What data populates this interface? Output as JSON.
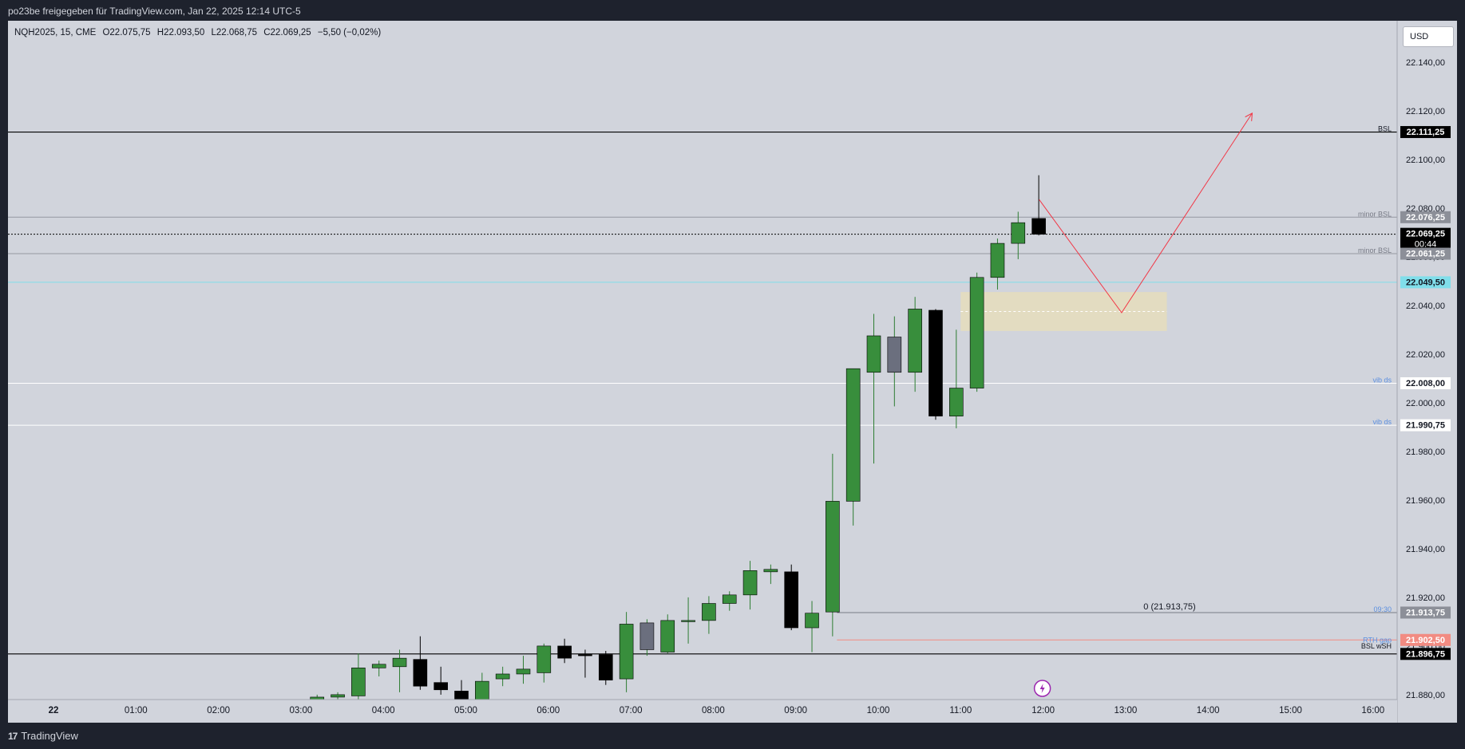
{
  "window": {
    "title": "po23be freigegeben für TradingView.com, Jan 22, 2025 12:14 UTC-5"
  },
  "legend": {
    "symbol": "NQH2025, 15, CME",
    "open": "O22.075,75",
    "high": "H22.093,50",
    "low": "L22.068,75",
    "close": "C22.069,25",
    "change": "−5,50 (−0,02%)"
  },
  "currency_button": "USD",
  "footer": {
    "brand": "TradingView",
    "logo_glyph": "17"
  },
  "colors": {
    "background": "#d1d4dc",
    "bull": "#388e3c",
    "bear": "#000000",
    "neutral": "#6b6f7e",
    "projection": "#f23645",
    "ob_zone": "#e8dfb8",
    "cyan_line": "#80deea",
    "rth_gap": "#f28b82"
  },
  "chart_data": {
    "type": "candlestick",
    "instrument": "NQH2025",
    "interval": "15",
    "currency": "USD",
    "y_range": [
      21878,
      22157
    ],
    "y_ticks": [
      21880,
      21900,
      21920,
      21940,
      21960,
      21980,
      22000,
      22020,
      22040,
      22060,
      22080,
      22100,
      22120,
      22140
    ],
    "y_tick_labels": [
      "21.880,00",
      "21.900,00",
      "21.920,00",
      "21.940,00",
      "21.960,00",
      "21.980,00",
      "22.000,00",
      "22.020,00",
      "22.040,00",
      "22.060,00",
      "22.080,00",
      "22.100,00",
      "22.120,00",
      "22.140,00"
    ],
    "x_tick_labels": [
      "22",
      "01:00",
      "02:00",
      "03:00",
      "04:00",
      "05:00",
      "06:00",
      "07:00",
      "08:00",
      "09:00",
      "10:00",
      "11:00",
      "12:00",
      "13:00",
      "14:00",
      "15:00",
      "16:00"
    ],
    "x_range_hours": [
      0,
      16.4
    ],
    "candles": [
      {
        "t": "03:15",
        "o": 21878.0,
        "h": 21880.0,
        "l": 21877.0,
        "c": 21879.0
      },
      {
        "t": "03:30",
        "o": 21879.0,
        "h": 21881.0,
        "l": 21877.0,
        "c": 21880.0
      },
      {
        "t": "03:45",
        "o": 21879.5,
        "h": 21897.0,
        "l": 21877.0,
        "c": 21891.0
      },
      {
        "t": "04:00",
        "o": 21891.0,
        "h": 21894.0,
        "l": 21887.5,
        "c": 21892.5
      },
      {
        "t": "04:15",
        "o": 21891.5,
        "h": 21898.5,
        "l": 21881.0,
        "c": 21895.0
      },
      {
        "t": "04:30",
        "o": 21894.5,
        "h": 21904.0,
        "l": 21882.0,
        "c": 21883.5
      },
      {
        "t": "04:45",
        "o": 21885.0,
        "h": 21891.5,
        "l": 21880.0,
        "c": 21882.0
      },
      {
        "t": "05:00",
        "o": 21881.5,
        "h": 21886.0,
        "l": 21876.0,
        "c": 21878.0
      },
      {
        "t": "05:15",
        "o": 21878.0,
        "h": 21889.0,
        "l": 21877.5,
        "c": 21885.5
      },
      {
        "t": "05:30",
        "o": 21886.5,
        "h": 21891.5,
        "l": 21883.5,
        "c": 21888.5
      },
      {
        "t": "05:45",
        "o": 21888.5,
        "h": 21896.0,
        "l": 21884.5,
        "c": 21890.5
      },
      {
        "t": "06:00",
        "o": 21889.0,
        "h": 21901.0,
        "l": 21885.0,
        "c": 21900.0
      },
      {
        "t": "06:15",
        "o": 21900.0,
        "h": 21903.0,
        "l": 21893.0,
        "c": 21895.0
      },
      {
        "t": "06:30",
        "o": 21896.5,
        "h": 21898.5,
        "l": 21887.0,
        "c": 21896.0
      },
      {
        "t": "06:45",
        "o": 21896.5,
        "h": 21898.0,
        "l": 21884.0,
        "c": 21886.0
      },
      {
        "t": "07:00",
        "o": 21886.5,
        "h": 21914.0,
        "l": 21881.0,
        "c": 21909.0
      },
      {
        "t": "07:15",
        "o": 21898.5,
        "h": 21911.0,
        "l": 21896.0,
        "c": 21909.5
      },
      {
        "t": "07:30",
        "o": 21897.5,
        "h": 21913.0,
        "l": 21897.0,
        "c": 21910.5
      },
      {
        "t": "07:45",
        "o": 21910.0,
        "h": 21920.0,
        "l": 21901.0,
        "c": 21910.5
      },
      {
        "t": "08:00",
        "o": 21910.5,
        "h": 21920.5,
        "l": 21905.0,
        "c": 21917.5
      },
      {
        "t": "08:15",
        "o": 21917.5,
        "h": 21922.5,
        "l": 21914.5,
        "c": 21921.0
      },
      {
        "t": "08:30",
        "o": 21921.0,
        "h": 21935.0,
        "l": 21915.0,
        "c": 21931.0
      },
      {
        "t": "08:45",
        "o": 21930.5,
        "h": 21933.5,
        "l": 21925.5,
        "c": 21931.5
      },
      {
        "t": "09:00",
        "o": 21930.5,
        "h": 21933.5,
        "l": 21906.5,
        "c": 21907.5
      },
      {
        "t": "09:15",
        "o": 21907.5,
        "h": 21918.5,
        "l": 21897.5,
        "c": 21913.5
      },
      {
        "t": "09:30",
        "o": 21914.0,
        "h": 21979.0,
        "l": 21904.0,
        "c": 21959.5
      },
      {
        "t": "09:45",
        "o": 21959.5,
        "h": 22014.0,
        "l": 21949.5,
        "c": 22014.0
      },
      {
        "t": "10:00",
        "o": 22012.5,
        "h": 22036.5,
        "l": 21975.0,
        "c": 22027.5
      },
      {
        "t": "10:15",
        "o": 22027.0,
        "h": 22035.5,
        "l": 21998.5,
        "c": 22012.5
      },
      {
        "t": "10:30",
        "o": 22012.5,
        "h": 22043.5,
        "l": 22004.5,
        "c": 22038.5
      },
      {
        "t": "10:45",
        "o": 22038.0,
        "h": 22038.5,
        "l": 21993.0,
        "c": 21994.5
      },
      {
        "t": "11:00",
        "o": 21994.5,
        "h": 22030.0,
        "l": 21989.5,
        "c": 22006.0
      },
      {
        "t": "11:15",
        "o": 22006.0,
        "h": 22053.5,
        "l": 22004.5,
        "c": 22051.5
      },
      {
        "t": "11:30",
        "o": 22051.5,
        "h": 22067.5,
        "l": 22046.5,
        "c": 22065.5
      },
      {
        "t": "11:45",
        "o": 22065.5,
        "h": 22078.5,
        "l": 22059.0,
        "c": 22074.0
      },
      {
        "t": "12:00",
        "o": 22075.75,
        "h": 22093.5,
        "l": 22068.75,
        "c": 22069.25
      }
    ],
    "horizontal_levels": [
      {
        "label": "BSL",
        "price_label": "22.111,25",
        "price": 22111.25,
        "color": "#000000"
      },
      {
        "label": "minor BSL",
        "price_label": "22.076,25",
        "price": 22076.25,
        "color": "#9598a1"
      },
      {
        "label": "",
        "price_label": "22.069,25",
        "price": 22069.25,
        "color": "#000000",
        "countdown": "00:44"
      },
      {
        "label": "minor BSL",
        "price_label": "22.061,25",
        "price": 22061.25,
        "color": "#9598a1"
      },
      {
        "label": "",
        "price_label": "22.049,50",
        "price": 22049.5,
        "color": "#80deea"
      },
      {
        "label": "vib ds",
        "price_label": "22.008,00",
        "price": 22008.0,
        "color": "#ffffff"
      },
      {
        "label": "vib ds",
        "price_label": "21.990,75",
        "price": 21990.75,
        "color": "#ffffff"
      },
      {
        "label": "09:30",
        "price_label": "21.913,75",
        "price": 21913.75,
        "color": "#787b86"
      },
      {
        "label": "RTH gap",
        "price_label": "21.902,50",
        "price": 21902.5,
        "color": "#f28b82"
      },
      {
        "label": "BSL wSH",
        "price_label": "21.896,75",
        "price": 21896.75,
        "color": "#000000"
      }
    ],
    "annotations": {
      "fib_label": "0 (21.913,75)",
      "ob_zone": {
        "from_time": "11:00",
        "to_time": "13:30",
        "top": 22045.5,
        "bottom": 22029.5
      },
      "projection_path": [
        {
          "t": "12:00",
          "p": 22083.5
        },
        {
          "t": "13:00",
          "p": 22037.0
        },
        {
          "t": "14:35",
          "p": 22119.0
        }
      ]
    }
  }
}
